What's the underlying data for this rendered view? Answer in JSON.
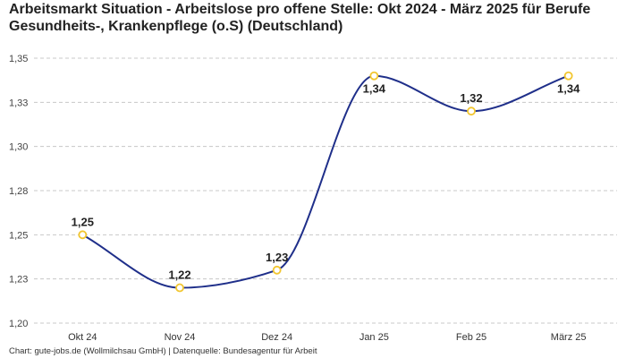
{
  "title": "Arbeitsmarkt Situation - Arbeitslose pro offene Stelle: Okt 2024 - März 2025 für Berufe Gesundheits-, Krankenpflege (o.S) (Deutschland)",
  "footer": "Chart: gute-jobs.de (Wollmilchsau GmbH) | Datenquelle: Bundesagentur für Arbeit",
  "colors": {
    "line": "#1f2f8a",
    "marker_stroke": "#f2c62f",
    "marker_fill": "#ffffff",
    "grid": "#c8c8c8"
  },
  "chart_data": {
    "type": "line",
    "title": "Arbeitsmarkt Situation - Arbeitslose pro offene Stelle: Okt 2024 - März 2025 für Berufe Gesundheits-, Krankenpflege (o.S) (Deutschland)",
    "categories": [
      "Okt 24",
      "Nov 24",
      "Dez 24",
      "Jan 25",
      "Feb 25",
      "März 25"
    ],
    "values": [
      1.25,
      1.22,
      1.23,
      1.34,
      1.32,
      1.34
    ],
    "data_labels": [
      "1,25",
      "1,22",
      "1,23",
      "1,34",
      "1,32",
      "1,34"
    ],
    "y_ticks": [
      1.2,
      1.225,
      1.25,
      1.275,
      1.3,
      1.325,
      1.35
    ],
    "y_tick_labels": [
      "1,20",
      "1,23",
      "1,25",
      "1,28",
      "1,30",
      "1,33",
      "1,35"
    ],
    "ylim": [
      1.2,
      1.35
    ],
    "grid": true,
    "legend": "none"
  }
}
